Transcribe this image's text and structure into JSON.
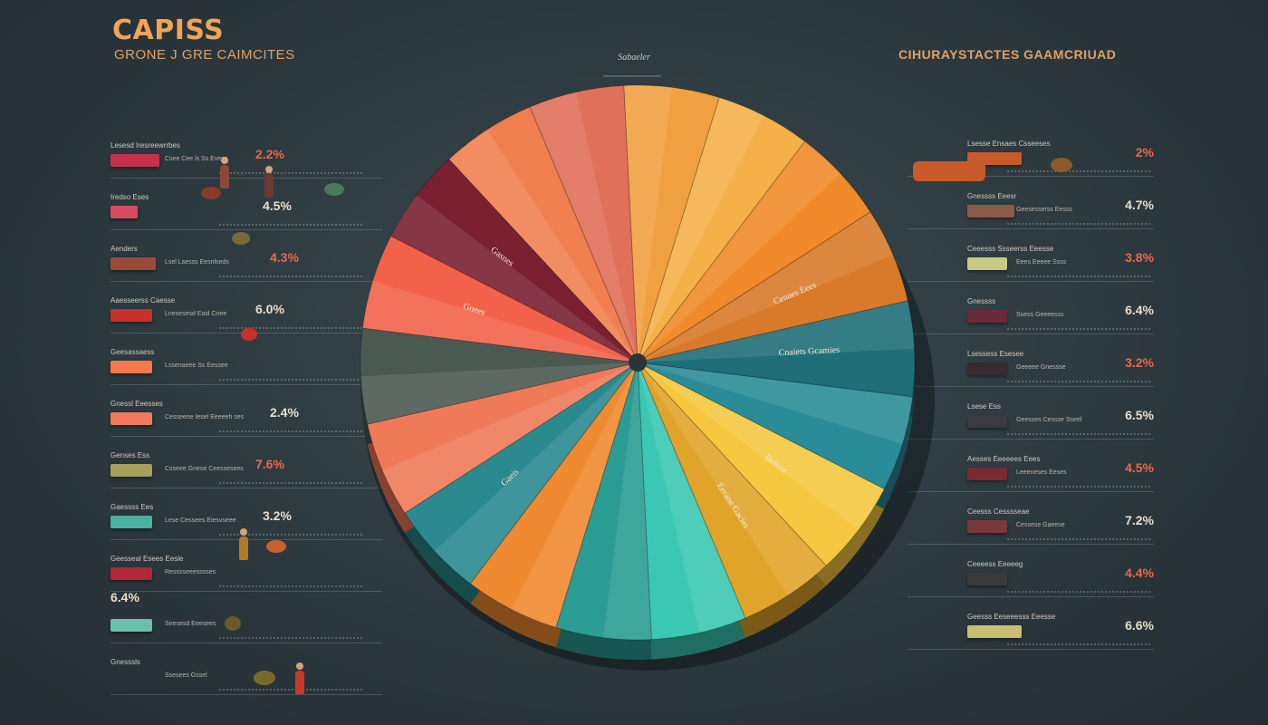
{
  "header": {
    "title": "CAPISS",
    "subtitle": "GRONE J GRE CAIMCITES",
    "center_label": "Sabaeler",
    "right_title": "CIHURAYSTACTES GAAMCRIUAD"
  },
  "colors": {
    "background": "#2c393f",
    "accent_orange": "#f0a35a",
    "percent_red": "#e9684a"
  },
  "left_rows": [
    {
      "caption": "Lesesd Iresreewrrbes",
      "note": "Csee Cee ls Ss Evess",
      "percent": "2.2%",
      "bar_color": "#c8304a",
      "bar_width": 54
    },
    {
      "caption": "Iredso Eses",
      "note": "",
      "percent": "4.5%",
      "bar_color": "#d84a5f",
      "bar_width": 30
    },
    {
      "caption": "Aenders",
      "note": "Lsel Lsesss Eesnlseds",
      "percent": "4.3%",
      "bar_color": "#9a4a3a",
      "bar_width": 50
    },
    {
      "caption": "Aaesseerss Caesse",
      "note": "Lnesesesd Easl Cnee",
      "percent": "6.0%",
      "bar_color": "#c8302a",
      "bar_width": 46
    },
    {
      "caption": "Geesassaess",
      "note": "Lssenaeee Ss Eessee",
      "percent": "",
      "bar_color": "#f07a4a",
      "bar_width": 46
    },
    {
      "caption": "Gnessl Eeesses",
      "note": "Cesseene Iesel Eeeeeh ses",
      "percent": "2.4%",
      "bar_color": "#f07a5a",
      "bar_width": 46
    },
    {
      "caption": "Genses Ess",
      "note": "Csseee Gnese Ceessesees",
      "percent": "7.6%",
      "bar_color": "#a8a05a",
      "bar_width": 46
    },
    {
      "caption": "Gaessss Ees",
      "note": "Lese Cessees Eiesvseee",
      "percent": "3.2%",
      "bar_color": "#4ab0a0",
      "bar_width": 46
    },
    {
      "caption": "Geesseal Esees Eesle",
      "note": "Resssseeesssses",
      "percent": "",
      "bar_color": "#b0283a",
      "bar_width": 46
    },
    {
      "caption": "",
      "note": "Seesesd Eeesees",
      "percent": "6.4%",
      "bar_color": "#6ac0b0",
      "bar_width": 46
    },
    {
      "caption": "Gnesssls",
      "note": "Ssesees Gssel",
      "percent": "",
      "bar_color": "#d85a5a",
      "bar_width": 0
    }
  ],
  "right_rows": [
    {
      "caption": "Lsesse Ensaes Csseeses",
      "note": "",
      "percent": "2%",
      "bar_color": "#c85a2a",
      "bar_width": 60
    },
    {
      "caption": "Gnessss Eeesr",
      "note": "Geesesserss Eesss",
      "percent": "4.7%",
      "bar_color": "#8a5a4a",
      "bar_width": 52
    },
    {
      "caption": "Ceeesss Ssseerss Eeesse",
      "note": "Eees Eeeee Ssss",
      "percent": "3.8%",
      "bar_color": "#c8c880",
      "bar_width": 44
    },
    {
      "caption": "Gnessss",
      "note": "Ssess Geeeesss",
      "percent": "6.4%",
      "bar_color": "#6a2a38",
      "bar_width": 44
    },
    {
      "caption": "Lsessess Esesee",
      "note": "Geeeee Gnessse",
      "percent": "3.2%",
      "bar_color": "#3a2a30",
      "bar_width": 44
    },
    {
      "caption": "Lsese Ess",
      "note": "Geesses Cessse Sseel",
      "percent": "6.5%",
      "bar_color": "#3a3a40",
      "bar_width": 44
    },
    {
      "caption": "Aesses Eeeeees Eees",
      "note": "Leeeneses Eeses",
      "percent": "4.5%",
      "bar_color": "#7a2a30",
      "bar_width": 44
    },
    {
      "caption": "Ceesss Cesssseae",
      "note": "Cessese Gaeese",
      "percent": "7.2%",
      "bar_color": "#7a3a3a",
      "bar_width": 44
    },
    {
      "caption": "Ceeeess Eeeeeg",
      "note": "",
      "percent": "4.4%",
      "bar_color": "#3a3a3a",
      "bar_width": 44
    },
    {
      "caption": "Geesss Eeseeesss Eeesse",
      "note": "",
      "percent": "6.6%",
      "bar_color": "#c8c070",
      "bar_width": 60
    }
  ],
  "chart_data": {
    "type": "pie",
    "title": "",
    "slices": [
      {
        "label": "",
        "value": 5.6,
        "color": "#f0a040"
      },
      {
        "label": "",
        "value": 5.6,
        "color": "#f5b04a"
      },
      {
        "label": "",
        "value": 5.6,
        "color": "#f08a2a"
      },
      {
        "label": "Cenaes Eees",
        "value": 5.6,
        "color": "#d97a2a"
      },
      {
        "label": "Cnaiets Gcamies",
        "value": 5.6,
        "color": "#1f6e78"
      },
      {
        "label": "",
        "value": 5.6,
        "color": "#2a8c96"
      },
      {
        "label": "Beeese",
        "value": 5.6,
        "color": "#f5c840"
      },
      {
        "label": "Eerane Gacies",
        "value": 5.6,
        "color": "#e0a42a"
      },
      {
        "label": "",
        "value": 5.6,
        "color": "#3ac8b4"
      },
      {
        "label": "",
        "value": 5.6,
        "color": "#2a9c94"
      },
      {
        "label": "",
        "value": 5.6,
        "color": "#f08a30"
      },
      {
        "label": "Gaeis",
        "value": 5.6,
        "color": "#2a8a90"
      },
      {
        "label": "",
        "value": 5.6,
        "color": "#f07a58"
      },
      {
        "label": "",
        "value": 5.6,
        "color": "#4a5a52"
      },
      {
        "label": "Gnees",
        "value": 5.6,
        "color": "#f2624a"
      },
      {
        "label": "Gasnes",
        "value": 5.6,
        "color": "#7a2030"
      },
      {
        "label": "",
        "value": 5.6,
        "color": "#f08050"
      },
      {
        "label": "",
        "value": 5.6,
        "color": "#e0705a"
      }
    ]
  }
}
